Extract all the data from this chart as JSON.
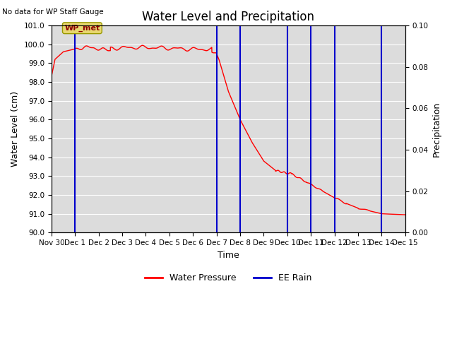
{
  "title": "Water Level and Precipitation",
  "top_left_text": "No data for WP Staff Gauge",
  "xlabel": "Time",
  "ylabel_left": "Water Level (cm)",
  "ylabel_right": "Precipitation",
  "ylim_left": [
    90.0,
    101.0
  ],
  "ylim_right": [
    0.0,
    0.1
  ],
  "xlim": [
    0.0,
    15.0
  ],
  "plot_bg_color": "#dcdcdc",
  "red_line_color": "#ff0000",
  "blue_line_color": "#0000cc",
  "annotation_box_color": "#e8d870",
  "annotation_text": "WP_met",
  "annotation_text_color": "#8b0000",
  "rain_x_positions": [
    1.0,
    7.0,
    8.0,
    10.0,
    11.0,
    12.0,
    14.0
  ],
  "xtick_labels": [
    "Nov 30",
    "Dec 1",
    "Dec 2",
    "Dec 3",
    "Dec 4",
    "Dec 5",
    "Dec 6",
    "Dec 7",
    "Dec 8",
    "Dec 9",
    "Dec 10",
    "Dec 11",
    "Dec 12",
    "Dec 13",
    "Dec 14",
    "Dec 15"
  ],
  "ytick_left": [
    90.0,
    91.0,
    92.0,
    93.0,
    94.0,
    95.0,
    96.0,
    97.0,
    98.0,
    99.0,
    100.0,
    101.0
  ],
  "ytick_right": [
    0.0,
    0.02,
    0.04,
    0.06,
    0.08,
    0.1
  ],
  "legend_labels": [
    "Water Pressure",
    "EE Rain"
  ],
  "legend_colors": [
    "#ff0000",
    "#0000cc"
  ],
  "title_fontsize": 12,
  "label_fontsize": 9,
  "tick_fontsize": 7.5
}
